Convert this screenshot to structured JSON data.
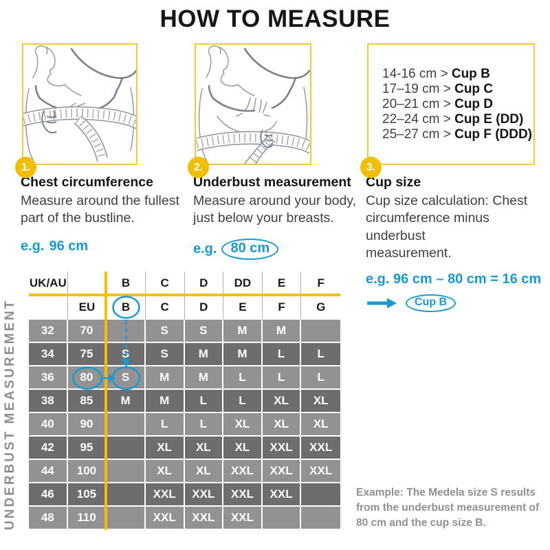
{
  "title": "HOW TO MEASURE",
  "steps": [
    {
      "number": "1.",
      "heading": "Chest circumference",
      "body": "Measure around the fullest\npart of the bustline.",
      "example_prefix": "e.g.",
      "example_value": "96 cm"
    },
    {
      "number": "2.",
      "heading": "Underbust measurement",
      "body": "Measure around your body,\njust below your breasts.",
      "example_prefix": "e.g.",
      "example_value": "80 cm"
    },
    {
      "number": "3.",
      "heading": "Cup size",
      "body": "Cup size calculation: Chest\ncircumference minus underbust\nmeasurement.",
      "example_formula": "e.g. 96 cm – 80 cm = 16 cm",
      "example_result": "Cup B"
    }
  ],
  "cup_chart": {
    "separator": ">",
    "items": [
      {
        "range": "14-16 cm",
        "cup": "Cup B"
      },
      {
        "range": "17–19 cm",
        "cup": "Cup C"
      },
      {
        "range": "20–21 cm",
        "cup": "Cup D"
      },
      {
        "range": "22–24 cm",
        "cup": "Cup E (DD)"
      },
      {
        "range": "25–27 cm",
        "cup": "Cup F (DDD)"
      }
    ]
  },
  "size_table": {
    "axis_label": "UNDERBUST MEASUREMENT",
    "uk_row": {
      "label": "UK/AU",
      "cups": [
        "B",
        "C",
        "D",
        "DD",
        "E",
        "F"
      ]
    },
    "eu_row": {
      "label": "EU",
      "cups": [
        "B",
        "C",
        "D",
        "E",
        "F",
        "G"
      ]
    },
    "rows": [
      {
        "uk": "32",
        "eu": "70",
        "sizes": [
          "",
          "S",
          "S",
          "M",
          "M",
          ""
        ]
      },
      {
        "uk": "34",
        "eu": "75",
        "sizes": [
          "S",
          "S",
          "M",
          "M",
          "L",
          "L"
        ]
      },
      {
        "uk": "36",
        "eu": "80",
        "sizes": [
          "S",
          "M",
          "M",
          "L",
          "L",
          "L"
        ]
      },
      {
        "uk": "38",
        "eu": "85",
        "sizes": [
          "M",
          "M",
          "L",
          "L",
          "XL",
          "XL"
        ]
      },
      {
        "uk": "40",
        "eu": "90",
        "sizes": [
          "",
          "L",
          "L",
          "XL",
          "XL",
          "XL"
        ]
      },
      {
        "uk": "42",
        "eu": "95",
        "sizes": [
          "",
          "XL",
          "XL",
          "XL",
          "XXL",
          "XXL"
        ]
      },
      {
        "uk": "44",
        "eu": "100",
        "sizes": [
          "",
          "XL",
          "XL",
          "XXL",
          "XXL",
          "XXL"
        ]
      },
      {
        "uk": "46",
        "eu": "105",
        "sizes": [
          "",
          "XXL",
          "XXL",
          "XXL",
          "XXL",
          ""
        ]
      },
      {
        "uk": "48",
        "eu": "110",
        "sizes": [
          "",
          "XXL",
          "XXL",
          "XXL",
          "",
          ""
        ]
      }
    ],
    "highlight": {
      "eu_cup": "B",
      "underbust": "80",
      "size": "S"
    }
  },
  "example_note": "Example: The Medela size S results\nfrom the underbust measurement of\n80 cm and the cup size B.",
  "colors": {
    "yellow": "#F3BF00",
    "yellow_border": "#F8C831",
    "blue": "#1799D4",
    "row_light": "#929292",
    "row_dark": "#6D6D6D",
    "note_gray": "#8C9094"
  }
}
